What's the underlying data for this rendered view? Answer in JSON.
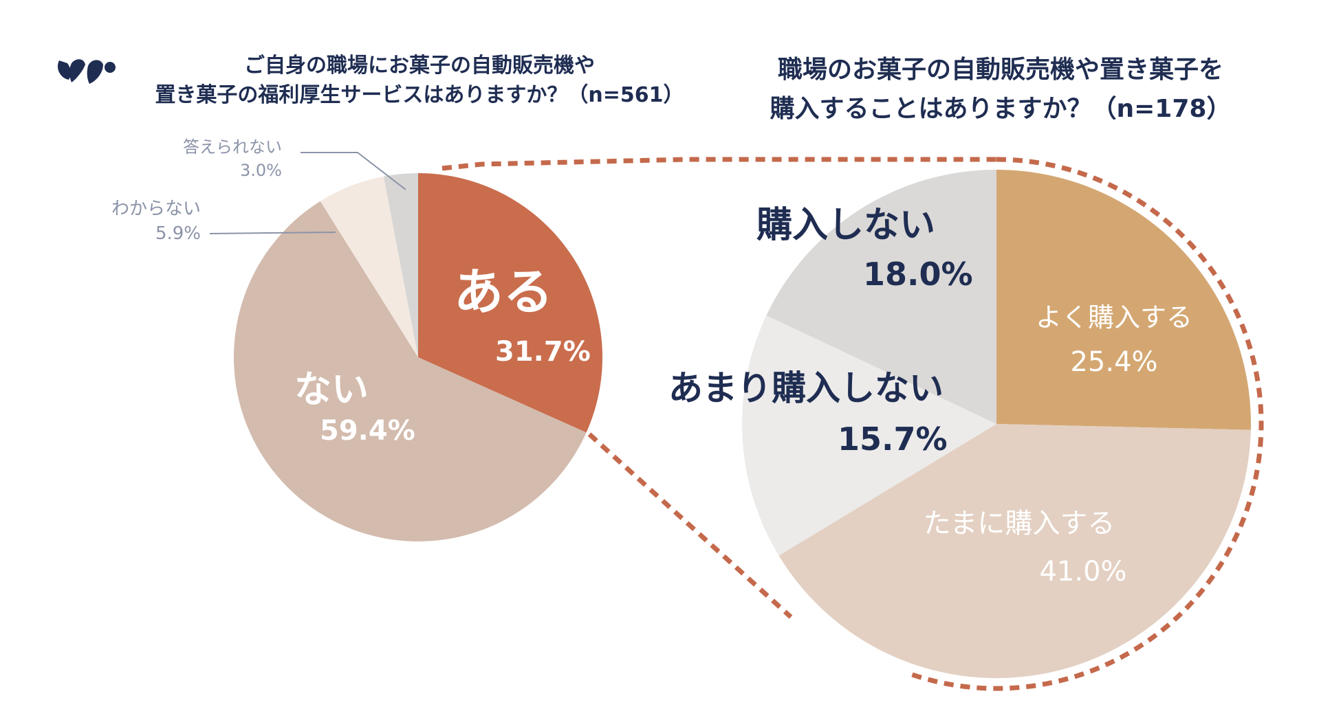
{
  "colors": {
    "navy": "#1f2d52",
    "muted_label": "#8b93a8",
    "accent_dash": "#c4694b",
    "white": "#ffffff"
  },
  "logo_icon": "brand-logo-icon",
  "chart_data": [
    {
      "type": "pie",
      "title_lines": [
        "ご自身の職場にお菓子の自動販売機や",
        "置き菓子の福利厚生サービスはありますか？（n=561）"
      ],
      "n": 561,
      "slices": [
        {
          "label": "ある",
          "value": 31.7,
          "value_label": "31.7%",
          "color": "#c96d4d"
        },
        {
          "label": "ない",
          "value": 59.4,
          "value_label": "59.4%",
          "color": "#d3bbad"
        },
        {
          "label": "わからない",
          "value": 5.9,
          "value_label": "5.9%",
          "color": "#f3e9e1"
        },
        {
          "label": "答えられない",
          "value": 3.0,
          "value_label": "3.0%",
          "color": "#d7d6d4"
        }
      ]
    },
    {
      "type": "pie",
      "title_lines": [
        "職場のお菓子の自動販売機や置き菓子を",
        "購入することはありますか？（n=178）"
      ],
      "n": 178,
      "slices": [
        {
          "label": "よく購入する",
          "value": 25.4,
          "value_label": "25.4%",
          "color": "#d4a772"
        },
        {
          "label": "たまに購入する",
          "value": 41.0,
          "value_label": "41.0%",
          "color": "#e3d0c2"
        },
        {
          "label": "あまり購入しない",
          "value": 15.7,
          "value_label": "15.7%",
          "color": "#ecebea"
        },
        {
          "label": "購入しない",
          "value": 18.0,
          "value_label": "18.0%",
          "color": "#dad9d7"
        }
      ]
    }
  ]
}
